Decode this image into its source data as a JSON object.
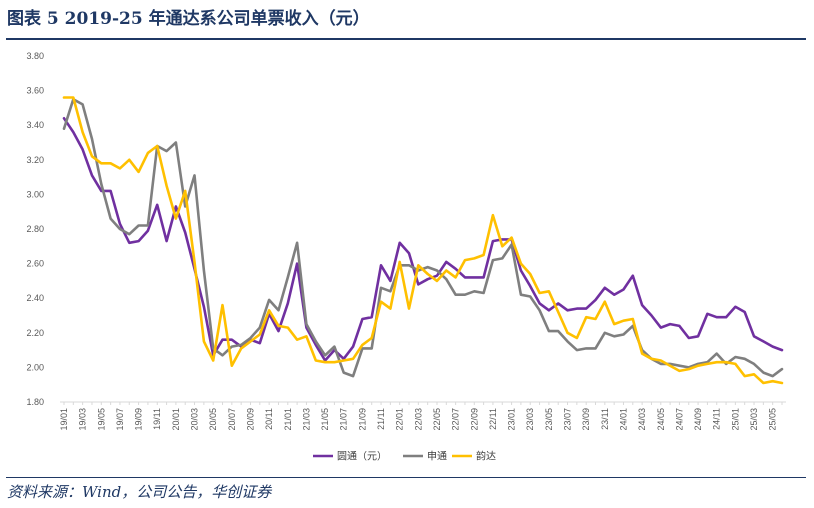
{
  "header": {
    "title": "图表 5   2019-25 年通达系公司单票收入（元）"
  },
  "footer": {
    "source": "资料来源：Wind，公司公告，华创证券"
  },
  "colors": {
    "yto": "#7030a0",
    "sto": "#7f7f7f",
    "yunda": "#ffc000",
    "axis": "#d9d9d9",
    "rule": "#1f3864"
  },
  "chart_data": {
    "type": "line",
    "title": "",
    "xlabel": "",
    "ylabel": "",
    "ylim": [
      1.8,
      3.8
    ],
    "yticks": [
      "3.80",
      "3.60",
      "3.40",
      "3.20",
      "3.00",
      "2.80",
      "2.60",
      "2.40",
      "2.20",
      "2.00",
      "1.80"
    ],
    "grid": false,
    "legend_position": "bottom",
    "categories": [
      "19/01",
      "19/02",
      "19/03",
      "19/04",
      "19/05",
      "19/06",
      "19/07",
      "19/08",
      "19/09",
      "19/10",
      "19/11",
      "19/12",
      "20/01",
      "20/02",
      "20/03",
      "20/04",
      "20/05",
      "20/06",
      "20/07",
      "20/08",
      "20/09",
      "20/10",
      "20/11",
      "20/12",
      "21/01",
      "21/02",
      "21/03",
      "21/04",
      "21/05",
      "21/06",
      "21/07",
      "21/08",
      "21/09",
      "21/10",
      "21/11",
      "21/12",
      "22/01",
      "22/02",
      "22/03",
      "22/04",
      "22/05",
      "22/06",
      "22/07",
      "22/08",
      "22/09",
      "22/10",
      "22/11",
      "22/12",
      "23/01",
      "23/02",
      "23/03",
      "23/04",
      "23/05",
      "23/06",
      "23/07",
      "23/08",
      "23/09",
      "23/10",
      "23/11",
      "23/12",
      "24/01",
      "24/02",
      "24/03",
      "24/04",
      "24/05",
      "24/06",
      "24/07",
      "24/08",
      "24/09",
      "24/10",
      "24/11",
      "24/12",
      "25/01",
      "25/02",
      "25/03",
      "25/04",
      "25/05",
      "25/06"
    ],
    "xtick_labels": [
      "19/01",
      "19/03",
      "19/05",
      "19/07",
      "19/09",
      "19/11",
      "20/01",
      "20/03",
      "20/05",
      "20/07",
      "20/09",
      "20/11",
      "21/01",
      "21/03",
      "21/05",
      "21/07",
      "21/09",
      "21/11",
      "22/01",
      "22/03",
      "22/05",
      "22/07",
      "22/09",
      "22/11",
      "23/01",
      "23/03",
      "23/05",
      "23/07",
      "23/09",
      "23/11",
      "24/01",
      "24/03",
      "24/05",
      "24/07",
      "24/09",
      "24/11",
      "25/01",
      "25/03",
      "25/05"
    ],
    "series": [
      {
        "name": "圆通（元）",
        "color": "#7030a0",
        "values": [
          3.44,
          3.36,
          3.26,
          3.11,
          3.02,
          3.02,
          2.83,
          2.72,
          2.73,
          2.79,
          2.94,
          2.73,
          2.93,
          2.78,
          2.57,
          2.35,
          2.07,
          2.16,
          2.16,
          2.12,
          2.16,
          2.14,
          2.31,
          2.21,
          2.37,
          2.6,
          2.23,
          2.13,
          2.04,
          2.1,
          2.05,
          2.12,
          2.28,
          2.29,
          2.59,
          2.5,
          2.72,
          2.66,
          2.48,
          2.51,
          2.53,
          2.61,
          2.57,
          2.52,
          2.52,
          2.52,
          2.73,
          2.74,
          2.74,
          2.56,
          2.47,
          2.37,
          2.33,
          2.37,
          2.33,
          2.34,
          2.34,
          2.39,
          2.46,
          2.42,
          2.45,
          2.53,
          2.36,
          2.3,
          2.23,
          2.25,
          2.24,
          2.17,
          2.18,
          2.31,
          2.29,
          2.29,
          2.35,
          2.32,
          2.18,
          2.15,
          2.12,
          2.1
        ]
      },
      {
        "name": "申通",
        "color": "#7f7f7f",
        "values": [
          3.38,
          3.55,
          3.52,
          3.32,
          3.06,
          2.86,
          2.8,
          2.77,
          2.82,
          2.82,
          3.28,
          3.25,
          3.3,
          2.93,
          3.11,
          2.56,
          2.11,
          2.07,
          2.12,
          2.13,
          2.17,
          2.23,
          2.39,
          2.33,
          2.52,
          2.72,
          2.25,
          2.15,
          2.07,
          2.12,
          1.97,
          1.95,
          2.11,
          2.11,
          2.46,
          2.44,
          2.59,
          2.59,
          2.56,
          2.58,
          2.56,
          2.51,
          2.42,
          2.42,
          2.44,
          2.43,
          2.62,
          2.63,
          2.71,
          2.42,
          2.41,
          2.33,
          2.21,
          2.21,
          2.15,
          2.1,
          2.11,
          2.11,
          2.2,
          2.18,
          2.19,
          2.24,
          2.1,
          2.05,
          2.02,
          2.02,
          2.01,
          2.0,
          2.02,
          2.03,
          2.08,
          2.02,
          2.06,
          2.05,
          2.02,
          1.97,
          1.95,
          1.99
        ]
      },
      {
        "name": "韵达",
        "color": "#ffc000",
        "values": [
          3.56,
          3.56,
          3.36,
          3.22,
          3.18,
          3.18,
          3.15,
          3.2,
          3.13,
          3.24,
          3.28,
          3.05,
          2.86,
          3.02,
          2.61,
          2.15,
          2.04,
          2.36,
          2.01,
          2.11,
          2.15,
          2.19,
          2.33,
          2.24,
          2.23,
          2.16,
          2.18,
          2.04,
          2.03,
          2.03,
          2.04,
          2.05,
          2.13,
          2.17,
          2.38,
          2.34,
          2.61,
          2.34,
          2.59,
          2.54,
          2.5,
          2.56,
          2.52,
          2.62,
          2.63,
          2.65,
          2.88,
          2.7,
          2.75,
          2.6,
          2.54,
          2.43,
          2.44,
          2.32,
          2.2,
          2.17,
          2.29,
          2.28,
          2.38,
          2.25,
          2.27,
          2.28,
          2.08,
          2.05,
          2.04,
          2.01,
          1.98,
          1.99,
          2.01,
          2.02,
          2.03,
          2.03,
          2.02,
          1.95,
          1.96,
          1.91,
          1.92,
          1.91
        ]
      }
    ]
  }
}
